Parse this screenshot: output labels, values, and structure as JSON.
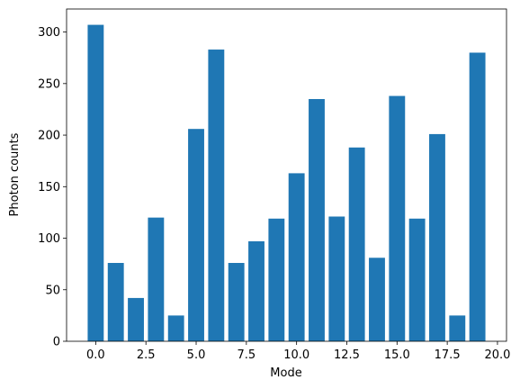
{
  "chart_data": {
    "type": "bar",
    "title": "",
    "xlabel": "Mode",
    "ylabel": "Photon counts",
    "x": [
      0,
      1,
      2,
      3,
      4,
      5,
      6,
      7,
      8,
      9,
      10,
      11,
      12,
      13,
      14,
      15,
      16,
      17,
      18,
      19
    ],
    "values": [
      307,
      76,
      42,
      120,
      25,
      206,
      283,
      76,
      97,
      119,
      163,
      235,
      121,
      188,
      81,
      238,
      119,
      201,
      25,
      280
    ],
    "xlim": [
      -1.45,
      20.45
    ],
    "ylim": [
      0,
      322.35
    ],
    "xticks": [
      "0.0",
      "2.5",
      "5.0",
      "7.5",
      "10.0",
      "12.5",
      "15.0",
      "17.5",
      "20.0"
    ],
    "xtick_values": [
      0,
      2.5,
      5,
      7.5,
      10,
      12.5,
      15,
      17.5,
      20
    ],
    "yticks": [
      "0",
      "50",
      "100",
      "150",
      "200",
      "250",
      "300"
    ],
    "ytick_values": [
      0,
      50,
      100,
      150,
      200,
      250,
      300
    ],
    "bar_width": 0.8,
    "bar_color": "#1f77b4",
    "grid": false,
    "legend": "none"
  }
}
